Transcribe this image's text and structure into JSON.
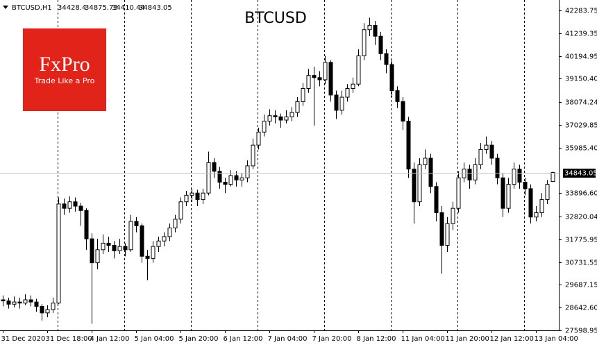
{
  "chart_data": {
    "type": "candlestick",
    "title": "BTCUSD",
    "symbol": "BTCUSD,H1",
    "logo": {
      "name": "FxPro",
      "slogan": "Trade Like a Pro"
    },
    "ylim": [
      27598.95,
      42283.75
    ],
    "yticks": [
      {
        "value": 42283.75,
        "label": "42283.75"
      },
      {
        "value": 41239.35,
        "label": "41239.35"
      },
      {
        "value": 40194.95,
        "label": "40194.95"
      },
      {
        "value": 39150.4,
        "label": "39150.40"
      },
      38074.24,
      {
        "value": 37029.85,
        "label": "37029.85"
      },
      {
        "value": 35985.4,
        "label": "35985.40"
      },
      {
        "value": 33896.6,
        "label": "33896.60"
      },
      32820.04,
      {
        "value": 31775.95,
        "label": "31775.95"
      },
      {
        "value": 30731.55,
        "label": "30731.55"
      },
      {
        "value": 29687.15,
        "label": "29687.15"
      },
      {
        "value": 28642.6,
        "label": "28642.60"
      },
      {
        "value": 27598.95,
        "label": "27598.95"
      }
    ],
    "xlim": [
      -0.5,
      100.125
    ],
    "xticks": [
      {
        "value": 0,
        "label": "31 Dec 2020"
      },
      {
        "value": 8,
        "label": "31 Dec 18:00"
      },
      {
        "value": 16,
        "label": "4 Jan 12:00"
      },
      {
        "value": 24,
        "label": "5 Jan 04:00"
      },
      {
        "value": 32,
        "label": "5 Jan 20:00"
      },
      {
        "value": 40,
        "label": "6 Jan 12:00"
      },
      {
        "value": 48,
        "label": "7 Jan 04:00"
      },
      {
        "value": 56,
        "label": "7 Jan 20:00"
      },
      {
        "value": 64,
        "label": "8 Jan 12:00"
      },
      {
        "value": 72,
        "label": "11 Jan 04:00"
      },
      {
        "value": 80,
        "label": "11 Jan 20:00"
      },
      {
        "value": 88,
        "label": "12 Jan 12:00"
      },
      {
        "value": 96,
        "label": "13 Jan 04:00"
      }
    ],
    "up_color": "#ffffff",
    "down_color": "#000000",
    "candles": [
      [
        29000,
        29200,
        28700,
        28950
      ],
      [
        28950,
        29100,
        28600,
        28800
      ],
      [
        28800,
        29150,
        28650,
        28900
      ],
      [
        28900,
        29100,
        28600,
        28850
      ],
      [
        28850,
        29250,
        28750,
        29000
      ],
      [
        29000,
        29200,
        28700,
        28900
      ],
      [
        28900,
        29050,
        28450,
        28700
      ],
      [
        28700,
        28800,
        28050,
        28400
      ],
      [
        28400,
        28750,
        28200,
        28550
      ],
      [
        28550,
        29100,
        28400,
        28850
      ],
      [
        28850,
        33700,
        28800,
        33400
      ],
      [
        33400,
        33650,
        32900,
        33200
      ],
      [
        33200,
        33750,
        33000,
        33500
      ],
      [
        33500,
        33700,
        33050,
        33300
      ],
      [
        33300,
        33450,
        32400,
        33100
      ],
      [
        33100,
        33200,
        31300,
        31800
      ],
      [
        31800,
        32050,
        27900,
        30700
      ],
      [
        30700,
        31800,
        30400,
        31300
      ],
      [
        31300,
        32000,
        31100,
        31600
      ],
      [
        31600,
        31900,
        31200,
        31500
      ],
      [
        31500,
        31700,
        30900,
        31250
      ],
      [
        31250,
        31800,
        31100,
        31450
      ],
      [
        31450,
        31600,
        31000,
        31300
      ],
      [
        31300,
        32900,
        31200,
        32600
      ],
      [
        32600,
        32800,
        32100,
        32400
      ],
      [
        32400,
        32500,
        30700,
        31000
      ],
      [
        31000,
        31300,
        29900,
        30900
      ],
      [
        30900,
        31700,
        30700,
        31450
      ],
      [
        31450,
        31900,
        31200,
        31700
      ],
      [
        31700,
        32100,
        31450,
        31900
      ],
      [
        31900,
        32500,
        31700,
        32300
      ],
      [
        32300,
        32900,
        32100,
        32700
      ],
      [
        32700,
        33700,
        32500,
        33500
      ],
      [
        33500,
        34000,
        33300,
        33800
      ],
      [
        33800,
        34100,
        33500,
        33900
      ],
      [
        33900,
        34050,
        33300,
        33600
      ],
      [
        33600,
        34100,
        33400,
        33900
      ],
      [
        33900,
        35800,
        33800,
        35300
      ],
      [
        35300,
        35500,
        34600,
        34900
      ],
      [
        34900,
        35100,
        34100,
        34400
      ],
      [
        34400,
        34600,
        33900,
        34300
      ],
      [
        34300,
        34950,
        34200,
        34700
      ],
      [
        34700,
        34900,
        34200,
        34500
      ],
      [
        34500,
        34800,
        34200,
        34600
      ],
      [
        34600,
        35400,
        34400,
        35150
      ],
      [
        35150,
        36400,
        35000,
        36100
      ],
      [
        36100,
        36900,
        35900,
        36700
      ],
      [
        36700,
        37500,
        36500,
        37200
      ],
      [
        37200,
        37750,
        37000,
        37450
      ],
      [
        37450,
        37700,
        37100,
        37400
      ],
      [
        37400,
        37550,
        36900,
        37250
      ],
      [
        37250,
        37700,
        37100,
        37400
      ],
      [
        37400,
        37850,
        37200,
        37600
      ],
      [
        37600,
        38300,
        37400,
        38100
      ],
      [
        38100,
        38950,
        37900,
        38700
      ],
      [
        38700,
        39600,
        38500,
        39300
      ],
      [
        39300,
        39700,
        37000,
        39200
      ],
      [
        39200,
        39500,
        38800,
        39100
      ],
      [
        39100,
        40200,
        38900,
        39900
      ],
      [
        39900,
        40000,
        38100,
        38400
      ],
      [
        38400,
        38600,
        37300,
        37700
      ],
      [
        37700,
        38600,
        37500,
        38300
      ],
      [
        38300,
        38900,
        38100,
        38700
      ],
      [
        38700,
        39200,
        38500,
        38900
      ],
      [
        38900,
        40500,
        38800,
        40200
      ],
      [
        40200,
        41700,
        40000,
        41400
      ],
      [
        41400,
        41950,
        41100,
        41600
      ],
      [
        41600,
        41800,
        40700,
        41100
      ],
      [
        41100,
        41300,
        40000,
        40300
      ],
      [
        40300,
        40500,
        39400,
        39800
      ],
      [
        39800,
        40000,
        38300,
        38600
      ],
      [
        38600,
        38800,
        37800,
        38100
      ],
      [
        38100,
        38300,
        36800,
        37200
      ],
      [
        37200,
        37400,
        34600,
        35000
      ],
      [
        35000,
        35300,
        32500,
        33500
      ],
      [
        33500,
        35500,
        33300,
        35200
      ],
      [
        35200,
        35900,
        35000,
        35500
      ],
      [
        35500,
        35700,
        33900,
        34200
      ],
      [
        34200,
        34400,
        32600,
        33000
      ],
      [
        33000,
        33300,
        30200,
        31500
      ],
      [
        31500,
        32800,
        31200,
        32500
      ],
      [
        32500,
        33500,
        32200,
        33200
      ],
      [
        33200,
        34900,
        33000,
        34600
      ],
      [
        34600,
        35300,
        34400,
        35000
      ],
      [
        35000,
        35200,
        34100,
        34500
      ],
      [
        34500,
        35500,
        34300,
        35200
      ],
      [
        35200,
        36200,
        35000,
        35900
      ],
      [
        35900,
        36500,
        35700,
        36100
      ],
      [
        36100,
        36300,
        35200,
        35500
      ],
      [
        35500,
        35700,
        34300,
        34600
      ],
      [
        34600,
        34800,
        32800,
        33200
      ],
      [
        33200,
        34600,
        33000,
        34300
      ],
      [
        34300,
        35300,
        34100,
        35000
      ],
      [
        35000,
        35200,
        34100,
        34400
      ],
      [
        34400,
        34600,
        33800,
        34100
      ],
      [
        34100,
        34300,
        32500,
        32800
      ],
      [
        32800,
        33300,
        32600,
        33000
      ],
      [
        33000,
        33900,
        32800,
        33600
      ],
      [
        33600,
        34500,
        33400,
        34300
      ],
      [
        34428.4,
        34875.73,
        34410.44,
        34843.05
      ]
    ]
  }
}
